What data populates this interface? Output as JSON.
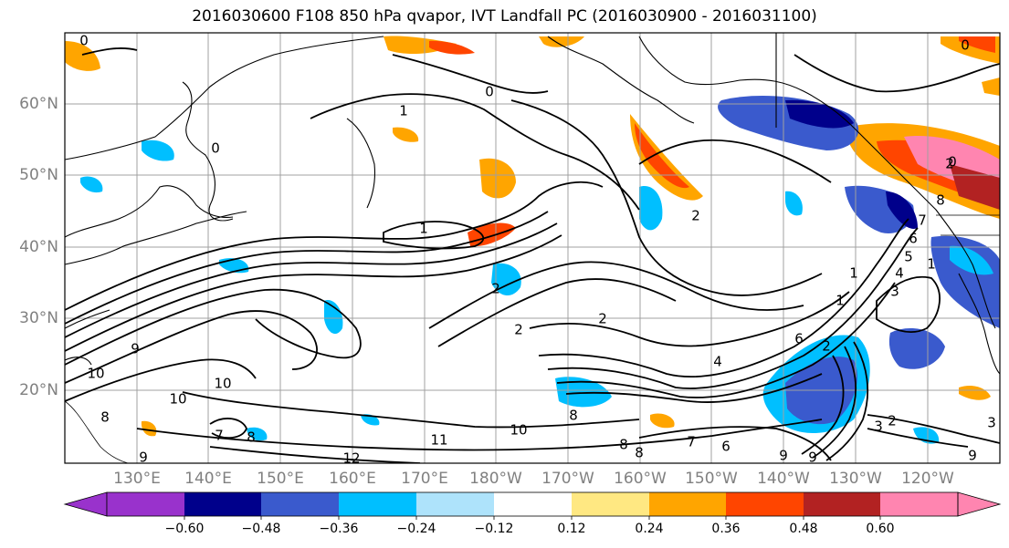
{
  "title": "2016030600 F108 850 hPa qvapor, IVT Landfall PC (2016030900 - 2016031100)",
  "map": {
    "lat_labels": [
      "60°N",
      "50°N",
      "40°N",
      "30°N",
      "20°N"
    ],
    "lon_labels": [
      "130°E",
      "140°E",
      "150°E",
      "160°E",
      "170°E",
      "180°W",
      "170°W",
      "160°W",
      "150°W",
      "140°W",
      "130°W",
      "120°W"
    ],
    "contour_labels": [
      "0",
      "0",
      "0",
      "1",
      "1",
      "0",
      "1",
      "2",
      "2",
      "2",
      "2",
      "1",
      "1",
      "2",
      "4",
      "6",
      "9",
      "10",
      "10",
      "10",
      "8",
      "9",
      "8",
      "7",
      "8",
      "9",
      "11",
      "12",
      "10",
      "8",
      "8",
      "7",
      "6",
      "9",
      "9",
      "3",
      "3",
      "2",
      "8",
      "7",
      "6",
      "5",
      "4",
      "3",
      "0",
      "2"
    ]
  },
  "colorbar": {
    "colors": [
      "#9932cc",
      "#00008b",
      "#3a5acd",
      "#00bfff",
      "#aee3fb",
      "#ffffff",
      "#ffe882",
      "#ffa500",
      "#ff4500",
      "#b22222",
      "#ff85b0",
      "#ff85b0"
    ],
    "labels": [
      "−0.60",
      "−0.48",
      "−0.36",
      "−0.24",
      "−0.12",
      "0.12",
      "0.24",
      "0.36",
      "0.48",
      "0.60"
    ]
  }
}
